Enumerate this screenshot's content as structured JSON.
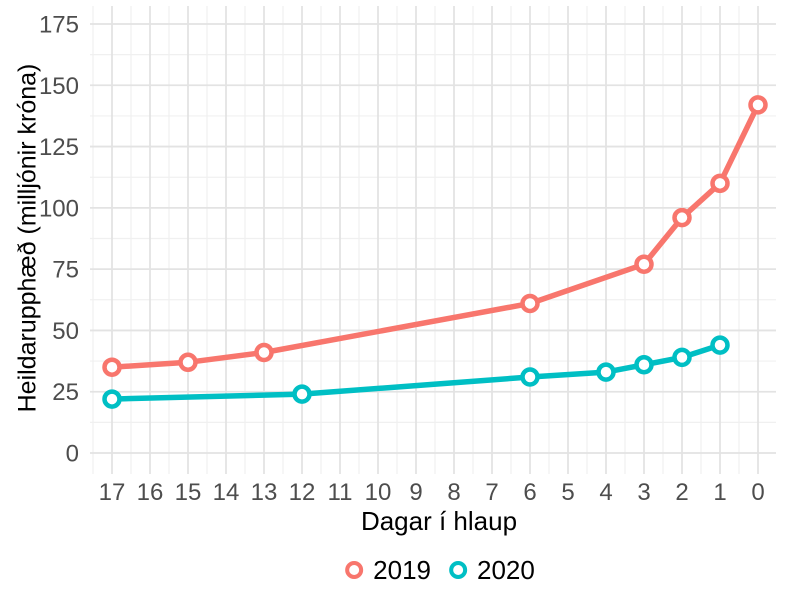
{
  "chart": {
    "legend": {
      "items": [
        {
          "label": "2019",
          "color": "#F8766D"
        },
        {
          "label": "2020",
          "color": "#00BFC4"
        }
      ]
    },
    "colors": {
      "series_2019": "#F8766D",
      "series_2020": "#00BFC4",
      "grid_major": "#e3e3e3",
      "grid_minor": "#f0f0f0",
      "tick_text": "#4d4d4d",
      "title_text": "#000000",
      "background": "#ffffff"
    }
  },
  "chart_data": {
    "type": "line",
    "title": "",
    "xlabel": "Dagar í hlaup",
    "ylabel": "Heildarupphæð (milljónir króna)",
    "x_ticks": [
      17,
      16,
      15,
      14,
      13,
      12,
      11,
      10,
      9,
      8,
      7,
      6,
      5,
      4,
      3,
      2,
      1,
      0
    ],
    "x_axis_reversed": true,
    "y_ticks": [
      0,
      25,
      50,
      75,
      100,
      125,
      150,
      175
    ],
    "ylim": [
      0,
      175
    ],
    "grid": "major+minor",
    "legend_position": "bottom",
    "marker_style": "open-circle",
    "series": [
      {
        "name": "2019",
        "color": "#F8766D",
        "points": [
          {
            "x": 17,
            "y": 35
          },
          {
            "x": 15,
            "y": 37
          },
          {
            "x": 13,
            "y": 41
          },
          {
            "x": 6,
            "y": 61
          },
          {
            "x": 3,
            "y": 77
          },
          {
            "x": 2,
            "y": 96
          },
          {
            "x": 1,
            "y": 110
          },
          {
            "x": 0,
            "y": 142
          }
        ]
      },
      {
        "name": "2020",
        "color": "#00BFC4",
        "points": [
          {
            "x": 17,
            "y": 22
          },
          {
            "x": 12,
            "y": 24
          },
          {
            "x": 6,
            "y": 31
          },
          {
            "x": 4,
            "y": 33
          },
          {
            "x": 3,
            "y": 36
          },
          {
            "x": 2,
            "y": 39
          },
          {
            "x": 1,
            "y": 44
          }
        ]
      }
    ]
  }
}
